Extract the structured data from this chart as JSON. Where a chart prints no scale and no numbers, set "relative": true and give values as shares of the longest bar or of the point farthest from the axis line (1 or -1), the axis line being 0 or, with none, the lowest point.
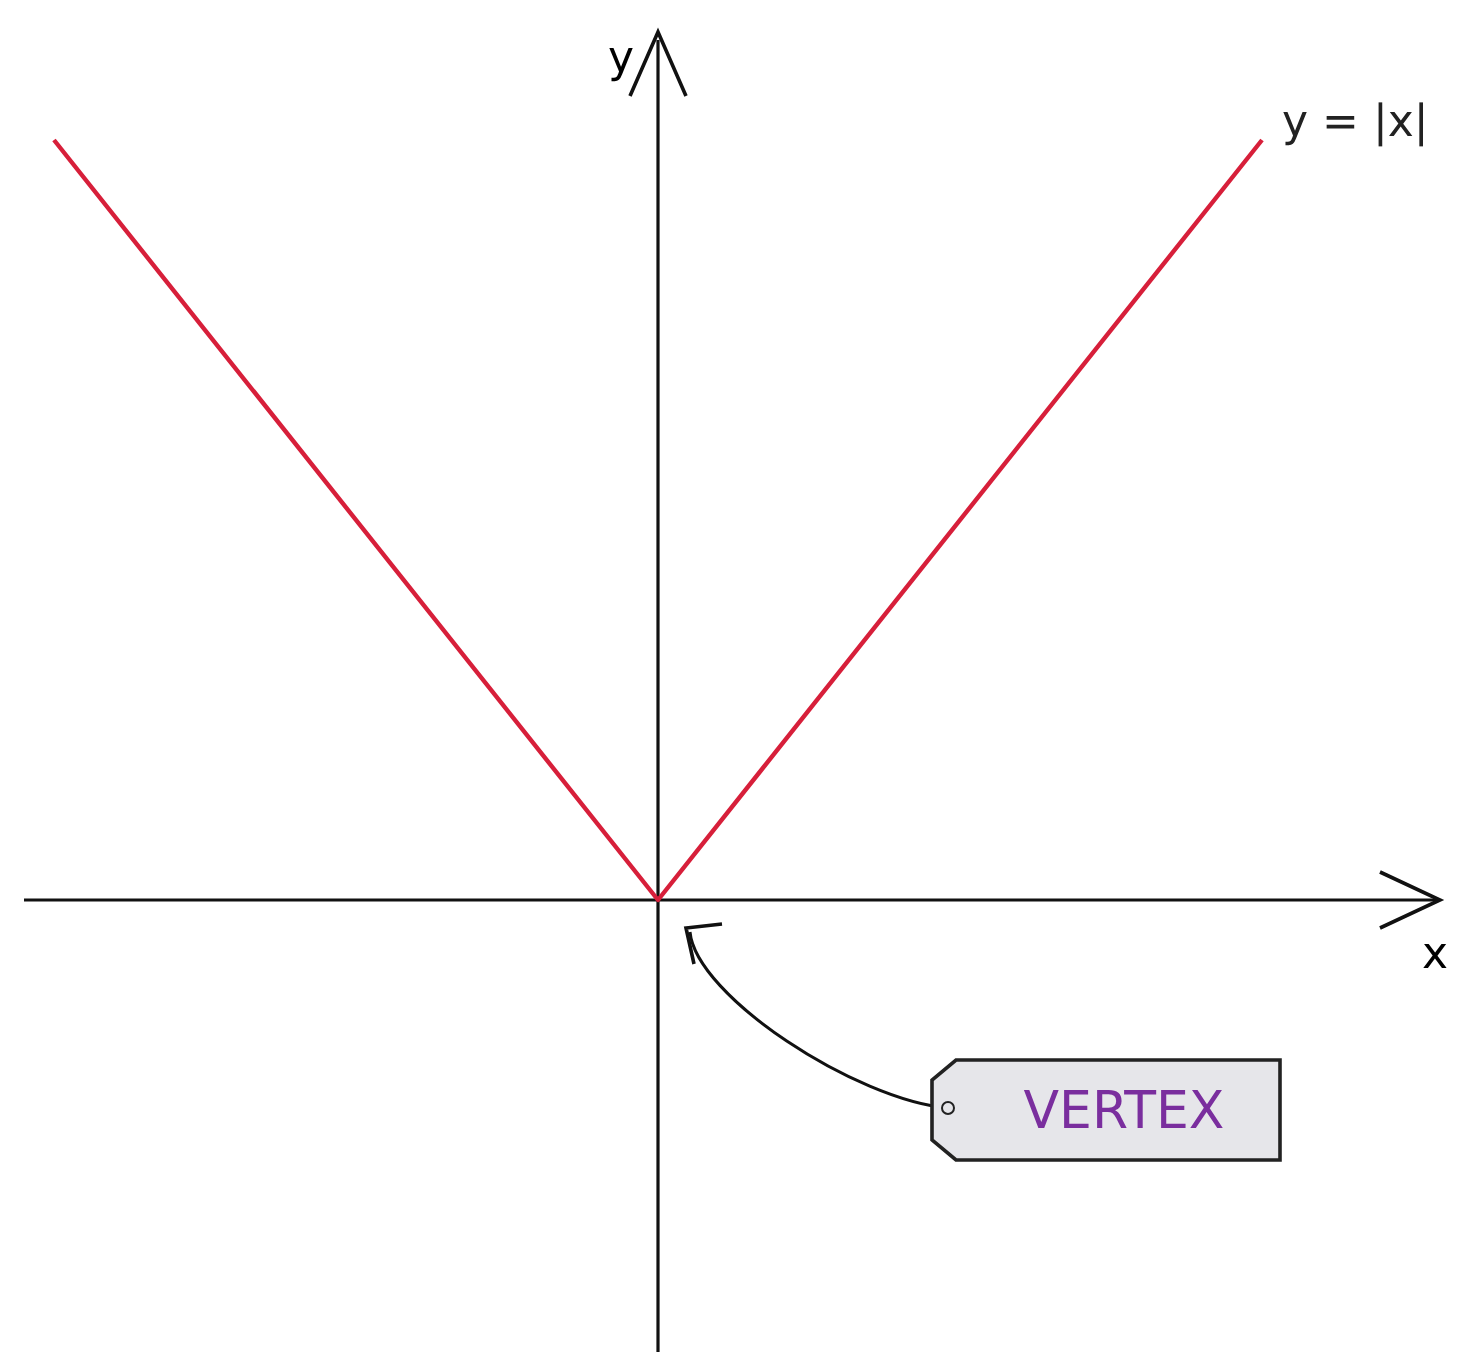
{
  "chart_data": {
    "type": "line",
    "relative": true,
    "xlabel": "x",
    "ylabel": "y",
    "categories": [
      null,
      null,
      null
    ],
    "series": [
      {
        "name": "y = |x|",
        "color": "#d71f3a",
        "values": [
          1,
          0,
          1
        ]
      }
    ],
    "annotations": [
      "VERTEX"
    ],
    "grid": false,
    "marker": "none",
    "line_style": "solid"
  }
}
